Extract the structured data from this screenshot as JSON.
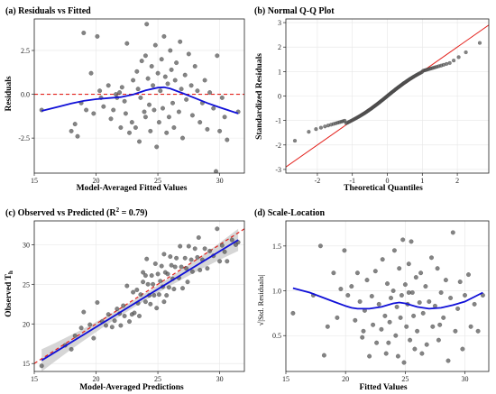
{
  "chart_data": [
    {
      "id": "a",
      "type": "scatter",
      "title": "(a) Residuals vs Fitted",
      "xlabel": "Model-Averaged Fitted Values",
      "ylabel": "Residuals",
      "xlim": [
        15,
        32
      ],
      "ylim": [
        -4.5,
        4.3
      ],
      "xticks": [
        15,
        20,
        25,
        30
      ],
      "xtick_labels": [
        "15",
        "20",
        "25",
        "30"
      ],
      "yticks": [
        -2.5,
        0,
        2.5
      ],
      "ytick_labels": [
        "-2.5",
        "0.0",
        "2.5"
      ],
      "grid": true,
      "reference_line": {
        "type": "hline",
        "value": 0,
        "style": "dashed",
        "color": "#e3201b"
      },
      "smooth": [
        [
          15.6,
          -0.95
        ],
        [
          17,
          -0.7
        ],
        [
          18,
          -0.52
        ],
        [
          19,
          -0.38
        ],
        [
          20,
          -0.28
        ],
        [
          21,
          -0.22
        ],
        [
          22,
          -0.16
        ],
        [
          23,
          -0.02
        ],
        [
          24,
          0.22
        ],
        [
          25,
          0.38
        ],
        [
          25.5,
          0.4
        ],
        [
          26,
          0.32
        ],
        [
          27,
          0.06
        ],
        [
          28,
          -0.22
        ],
        [
          29,
          -0.5
        ],
        [
          30,
          -0.75
        ],
        [
          31.5,
          -1.1
        ]
      ],
      "smooth_color": "#1010d8",
      "points": [
        [
          15.6,
          -0.9
        ],
        [
          18,
          -2.1
        ],
        [
          18.3,
          -1.7
        ],
        [
          18.5,
          -2.4
        ],
        [
          18.8,
          -0.5
        ],
        [
          19,
          3.5
        ],
        [
          19.2,
          -0.9
        ],
        [
          19.6,
          1.2
        ],
        [
          19.8,
          -1.1
        ],
        [
          20.1,
          3.3
        ],
        [
          20.3,
          0.2
        ],
        [
          20.4,
          -0.2
        ],
        [
          20.6,
          -0.7
        ],
        [
          21,
          0.5
        ],
        [
          21.2,
          -1.4
        ],
        [
          21.4,
          -0.9
        ],
        [
          21.6,
          0.0
        ],
        [
          21.7,
          -0.2
        ],
        [
          21.9,
          0.1
        ],
        [
          22,
          -1.9
        ],
        [
          22.1,
          0.4
        ],
        [
          22.3,
          -0.4
        ],
        [
          22.4,
          -1.1
        ],
        [
          22.5,
          2.9
        ],
        [
          22.7,
          -2.2
        ],
        [
          22.9,
          -1.6
        ],
        [
          23,
          0.8
        ],
        [
          23.2,
          -1.9
        ],
        [
          23.3,
          1.3
        ],
        [
          23.4,
          0.3
        ],
        [
          23.5,
          -2.7
        ],
        [
          23.6,
          -0.2
        ],
        [
          23.7,
          1.9
        ],
        [
          23.9,
          -1.0
        ],
        [
          24,
          2.2
        ],
        [
          24,
          -1.3
        ],
        [
          24.1,
          4.0
        ],
        [
          24.2,
          0.9
        ],
        [
          24.3,
          -0.6
        ],
        [
          24.4,
          -2.1
        ],
        [
          24.5,
          1.6
        ],
        [
          24.6,
          0.5
        ],
        [
          24.7,
          -0.9
        ],
        [
          24.8,
          2.8
        ],
        [
          24.9,
          -3.0
        ],
        [
          25,
          1.2
        ],
        [
          25.1,
          -1.6
        ],
        [
          25.2,
          0.2
        ],
        [
          25.3,
          2.0
        ],
        [
          25.4,
          -0.8
        ],
        [
          25.5,
          3.3
        ],
        [
          25.6,
          1.0
        ],
        [
          25.7,
          -2.2
        ],
        [
          25.8,
          0.6
        ],
        [
          25.9,
          -1.3
        ],
        [
          26,
          2.5
        ],
        [
          26.1,
          1.4
        ],
        [
          26.2,
          -0.5
        ],
        [
          26.3,
          -1.9
        ],
        [
          26.4,
          0.8
        ],
        [
          26.5,
          1.8
        ],
        [
          26.7,
          -1.0
        ],
        [
          26.8,
          3.0
        ],
        [
          26.9,
          0.3
        ],
        [
          27,
          -2.5
        ],
        [
          27.2,
          1.1
        ],
        [
          27.3,
          -0.3
        ],
        [
          27.5,
          2.3
        ],
        [
          27.7,
          0.5
        ],
        [
          27.8,
          -1.2
        ],
        [
          28,
          1.6
        ],
        [
          28.2,
          0.2
        ],
        [
          28.4,
          -1.6
        ],
        [
          28.6,
          -0.5
        ],
        [
          28.8,
          0.8
        ],
        [
          29,
          -2.0
        ],
        [
          29.2,
          0.1
        ],
        [
          29.5,
          -0.8
        ],
        [
          29.8,
          2.2
        ],
        [
          30,
          -2.1
        ],
        [
          30.2,
          -0.2
        ],
        [
          30.4,
          -1.3
        ],
        [
          30.6,
          -2.6
        ],
        [
          29.7,
          -4.4
        ],
        [
          31.5,
          -1.0
        ]
      ]
    },
    {
      "id": "b",
      "type": "scatter",
      "title": "(b) Normal Q-Q Plot",
      "xlabel": "Theoretical Quantiles",
      "ylabel": "Standardized Residuals",
      "xlim": [
        -2.9,
        2.9
      ],
      "ylim": [
        -3.15,
        3.15
      ],
      "xticks": [
        -2,
        -1,
        0,
        1,
        2
      ],
      "xtick_labels": [
        "-2",
        "-1",
        "0",
        "1",
        "2"
      ],
      "yticks": [
        -3,
        -2,
        -1,
        0,
        1,
        2,
        3
      ],
      "ytick_labels": [
        "-3",
        "-2",
        "-1",
        "0",
        "1",
        "2",
        "3"
      ],
      "grid": true,
      "reference_line": {
        "type": "diagonal",
        "intercept": 0,
        "slope": 1,
        "color": "#e3201b"
      },
      "qq_points": 121,
      "qq_color": "#333333"
    },
    {
      "id": "c",
      "type": "scatter",
      "title": "(c) Observed vs Predicted (R² = 0.79)",
      "xlabel": "Model-Averaged Predictions",
      "ylabel": "Observed Tₕ",
      "xlim": [
        15,
        32
      ],
      "ylim": [
        14,
        33
      ],
      "xticks": [
        15,
        20,
        25,
        30
      ],
      "xtick_labels": [
        "15",
        "20",
        "25",
        "30"
      ],
      "yticks": [
        15,
        20,
        25,
        30
      ],
      "ytick_labels": [
        "15",
        "20",
        "25",
        "30"
      ],
      "grid": true,
      "reference_line": {
        "type": "diagonal",
        "intercept": 0,
        "slope": 1,
        "style": "dashed",
        "color": "#e3201b"
      },
      "fit_line": [
        [
          15.6,
          15.4
        ],
        [
          31.5,
          30.6
        ]
      ],
      "fit_color": "#1010d8",
      "band_color": "#c8c8c8",
      "points": [
        [
          15.6,
          14.7
        ],
        [
          17.5,
          17.3
        ],
        [
          18,
          16.8
        ],
        [
          18.3,
          18.5
        ],
        [
          18.8,
          19.5
        ],
        [
          19,
          21.5
        ],
        [
          19.5,
          19.9
        ],
        [
          19.8,
          18.2
        ],
        [
          20.1,
          22.7
        ],
        [
          20.5,
          20.3
        ],
        [
          20.8,
          19.8
        ],
        [
          21,
          21.2
        ],
        [
          21.3,
          19.6
        ],
        [
          21.5,
          20.4
        ],
        [
          21.7,
          21.9
        ],
        [
          21.9,
          21.3
        ],
        [
          22,
          19.8
        ],
        [
          22.2,
          22.3
        ],
        [
          22.3,
          21.0
        ],
        [
          22.5,
          24.8
        ],
        [
          22.7,
          20.3
        ],
        [
          22.9,
          21.2
        ],
        [
          23,
          24.0
        ],
        [
          23.1,
          21.4
        ],
        [
          23.3,
          24.3
        ],
        [
          23.4,
          22.6
        ],
        [
          23.5,
          21.0
        ],
        [
          23.6,
          23.7
        ],
        [
          23.8,
          25.3
        ],
        [
          24,
          26.1
        ],
        [
          24,
          22.8
        ],
        [
          24.1,
          28.2
        ],
        [
          24.2,
          25.0
        ],
        [
          24.3,
          23.6
        ],
        [
          24.4,
          22.5
        ],
        [
          24.5,
          26.1
        ],
        [
          24.6,
          25.0
        ],
        [
          24.7,
          23.6
        ],
        [
          24.8,
          27.6
        ],
        [
          24.9,
          22.0
        ],
        [
          25,
          26.3
        ],
        [
          25.1,
          23.7
        ],
        [
          25.2,
          25.4
        ],
        [
          25.3,
          27.3
        ],
        [
          25.4,
          24.7
        ],
        [
          25.5,
          28.8
        ],
        [
          25.6,
          26.5
        ],
        [
          25.7,
          23.6
        ],
        [
          25.8,
          26.3
        ],
        [
          25.9,
          24.6
        ],
        [
          26,
          28.5
        ],
        [
          26.1,
          27.4
        ],
        [
          26.2,
          25.7
        ],
        [
          26.3,
          24.4
        ],
        [
          26.4,
          27.2
        ],
        [
          26.5,
          28.3
        ],
        [
          26.7,
          25.8
        ],
        [
          26.8,
          29.8
        ],
        [
          26.9,
          27.2
        ],
        [
          27,
          24.5
        ],
        [
          27.2,
          28.3
        ],
        [
          27.3,
          27.0
        ],
        [
          27.5,
          29.8
        ],
        [
          27.7,
          28.1
        ],
        [
          27.8,
          26.6
        ],
        [
          28,
          29.5
        ],
        [
          28.2,
          28.4
        ],
        [
          28.4,
          26.8
        ],
        [
          28.6,
          28.1
        ],
        [
          28.8,
          29.5
        ],
        [
          29,
          27.0
        ],
        [
          29.2,
          29.2
        ],
        [
          29.5,
          28.6
        ],
        [
          29.8,
          32.0
        ],
        [
          30,
          27.9
        ],
        [
          30.2,
          29.9
        ],
        [
          30.4,
          29.1
        ],
        [
          30.6,
          27.9
        ],
        [
          31,
          30.6
        ],
        [
          31.3,
          30.0
        ],
        [
          31.5,
          30.3
        ],
        [
          23.8,
          26.5
        ],
        [
          25.5,
          22.8
        ],
        [
          27.4,
          25.3
        ],
        [
          28.3,
          30.9
        ]
      ]
    },
    {
      "id": "d",
      "type": "scatter",
      "title": "(d) Scale-Location",
      "xlabel": "Fitted Values",
      "ylabel": "√|Std. Residuals|",
      "xlim": [
        15,
        32
      ],
      "ylim": [
        0.1,
        1.78
      ],
      "xticks": [
        15,
        20,
        25,
        30
      ],
      "xtick_labels": [
        "15",
        "20",
        "25",
        "30"
      ],
      "yticks": [
        0.5,
        1.0,
        1.5
      ],
      "ytick_labels": [
        "0.5",
        "1.0",
        "1.5"
      ],
      "grid": true,
      "smooth": [
        [
          15.6,
          1.03
        ],
        [
          17,
          0.98
        ],
        [
          18,
          0.93
        ],
        [
          19,
          0.88
        ],
        [
          20,
          0.83
        ],
        [
          20.5,
          0.81
        ],
        [
          21,
          0.8
        ],
        [
          22,
          0.8
        ],
        [
          23,
          0.82
        ],
        [
          24,
          0.86
        ],
        [
          24.5,
          0.87
        ],
        [
          25,
          0.86
        ],
        [
          26,
          0.82
        ],
        [
          27,
          0.8
        ],
        [
          28,
          0.81
        ],
        [
          29,
          0.84
        ],
        [
          30,
          0.88
        ],
        [
          31.5,
          0.98
        ]
      ],
      "smooth_color": "#1010d8",
      "points": [
        [
          15.6,
          0.75
        ],
        [
          17.3,
          0.95
        ],
        [
          17.9,
          1.5
        ],
        [
          18.2,
          0.28
        ],
        [
          18.5,
          0.6
        ],
        [
          19,
          1.2
        ],
        [
          19.3,
          0.7
        ],
        [
          19.6,
          1.02
        ],
        [
          19.9,
          1.45
        ],
        [
          20.2,
          0.95
        ],
        [
          20.5,
          1.05
        ],
        [
          20.8,
          0.67
        ],
        [
          21,
          1.2
        ],
        [
          21.2,
          0.88
        ],
        [
          21.4,
          0.48
        ],
        [
          21.6,
          0.78
        ],
        [
          21.8,
          1.12
        ],
        [
          22,
          0.27
        ],
        [
          22.2,
          0.94
        ],
        [
          22.3,
          0.62
        ],
        [
          22.5,
          1.22
        ],
        [
          22.6,
          0.42
        ],
        [
          22.8,
          0.85
        ],
        [
          23,
          0.57
        ],
        [
          23.1,
          1.35
        ],
        [
          23.3,
          0.72
        ],
        [
          23.4,
          0.3
        ],
        [
          23.5,
          1.08
        ],
        [
          23.7,
          0.65
        ],
        [
          23.8,
          0.92
        ],
        [
          24,
          1.0
        ],
        [
          24.1,
          1.45
        ],
        [
          24.2,
          0.5
        ],
        [
          24.3,
          0.82
        ],
        [
          24.4,
          0.27
        ],
        [
          24.5,
          1.25
        ],
        [
          24.6,
          0.7
        ],
        [
          24.7,
          0.95
        ],
        [
          24.8,
          1.57
        ],
        [
          24.9,
          0.2
        ],
        [
          25,
          1.07
        ],
        [
          25.1,
          0.6
        ],
        [
          25.2,
          0.85
        ],
        [
          25.3,
          1.3
        ],
        [
          25.4,
          0.45
        ],
        [
          25.5,
          1.55
        ],
        [
          25.6,
          0.98
        ],
        [
          25.7,
          0.72
        ],
        [
          25.8,
          0.35
        ],
        [
          25.9,
          1.15
        ],
        [
          26,
          0.55
        ],
        [
          26.2,
          0.87
        ],
        [
          26.3,
          1.2
        ],
        [
          26.4,
          0.3
        ],
        [
          26.5,
          0.75
        ],
        [
          26.7,
          1.05
        ],
        [
          26.8,
          0.4
        ],
        [
          27,
          0.88
        ],
        [
          27.2,
          1.37
        ],
        [
          27.3,
          0.6
        ],
        [
          27.5,
          0.83
        ],
        [
          27.7,
          1.25
        ],
        [
          27.8,
          0.45
        ],
        [
          28,
          0.98
        ],
        [
          28.2,
          0.7
        ],
        [
          28.4,
          1.12
        ],
        [
          28.6,
          0.22
        ],
        [
          28.8,
          0.92
        ],
        [
          29,
          1.65
        ],
        [
          29.2,
          0.55
        ],
        [
          29.4,
          0.8
        ],
        [
          29.6,
          1.1
        ],
        [
          29.8,
          0.35
        ],
        [
          30,
          0.95
        ],
        [
          30.3,
          1.18
        ],
        [
          30.5,
          0.6
        ],
        [
          30.8,
          0.85
        ],
        [
          31.1,
          0.55
        ],
        [
          31.5,
          0.95
        ],
        [
          21.5,
          0.55
        ],
        [
          23.6,
          0.42
        ],
        [
          25.3,
          0.98
        ],
        [
          27.9,
          0.62
        ]
      ]
    }
  ]
}
